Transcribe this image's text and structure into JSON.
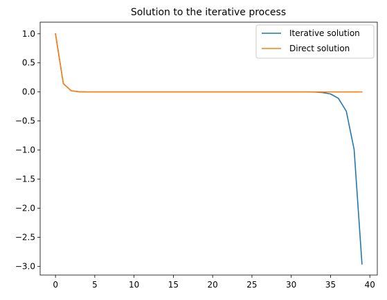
{
  "chart_data": {
    "type": "line",
    "title": "Solution to the iterative process",
    "xlabel": "",
    "ylabel": "",
    "xlim": [
      -1.95,
      40.95
    ],
    "ylim": [
      -3.15,
      1.2
    ],
    "x_ticks": [
      0,
      5,
      10,
      15,
      20,
      25,
      30,
      35,
      40
    ],
    "x_tick_labels": [
      "0",
      "5",
      "10",
      "15",
      "20",
      "25",
      "30",
      "35",
      "40"
    ],
    "y_ticks": [
      1.0,
      0.5,
      0.0,
      -0.5,
      -1.0,
      -1.5,
      -2.0,
      -2.5,
      -3.0
    ],
    "y_tick_labels": [
      "1.0",
      "0.5",
      "0.0",
      "−0.5",
      "−1.0",
      "−1.5",
      "−2.0",
      "−2.5",
      "−3.0"
    ],
    "grid": false,
    "legend_position": "upper-right",
    "x": [
      0,
      1,
      2,
      3,
      4,
      5,
      6,
      7,
      8,
      9,
      10,
      11,
      12,
      13,
      14,
      15,
      16,
      17,
      18,
      19,
      20,
      21,
      22,
      23,
      24,
      25,
      26,
      27,
      28,
      29,
      30,
      31,
      32,
      33,
      34,
      35,
      36,
      37,
      38,
      39
    ],
    "series": [
      {
        "name": "Iterative solution",
        "color": "#1f77b4",
        "values": [
          1.0,
          0.143,
          0.02,
          0.003,
          0.0004,
          0.0001,
          0,
          0,
          0,
          0,
          0,
          0,
          0,
          0,
          0,
          0,
          0,
          0,
          0,
          0,
          0,
          0,
          0,
          0,
          0,
          0,
          0,
          0,
          0,
          0,
          0,
          0,
          -0.0005,
          -0.002,
          -0.01,
          -0.035,
          -0.11,
          -0.33,
          -0.99,
          -2.96
        ]
      },
      {
        "name": "Direct solution",
        "color": "#ff7f0e",
        "values": [
          1.0,
          0.143,
          0.02,
          0.003,
          0.0004,
          0.0001,
          0,
          0,
          0,
          0,
          0,
          0,
          0,
          0,
          0,
          0,
          0,
          0,
          0,
          0,
          0,
          0,
          0,
          0,
          0,
          0,
          0,
          0,
          0,
          0,
          0,
          0,
          0,
          0,
          0,
          0,
          0,
          0,
          0,
          0
        ]
      }
    ]
  }
}
